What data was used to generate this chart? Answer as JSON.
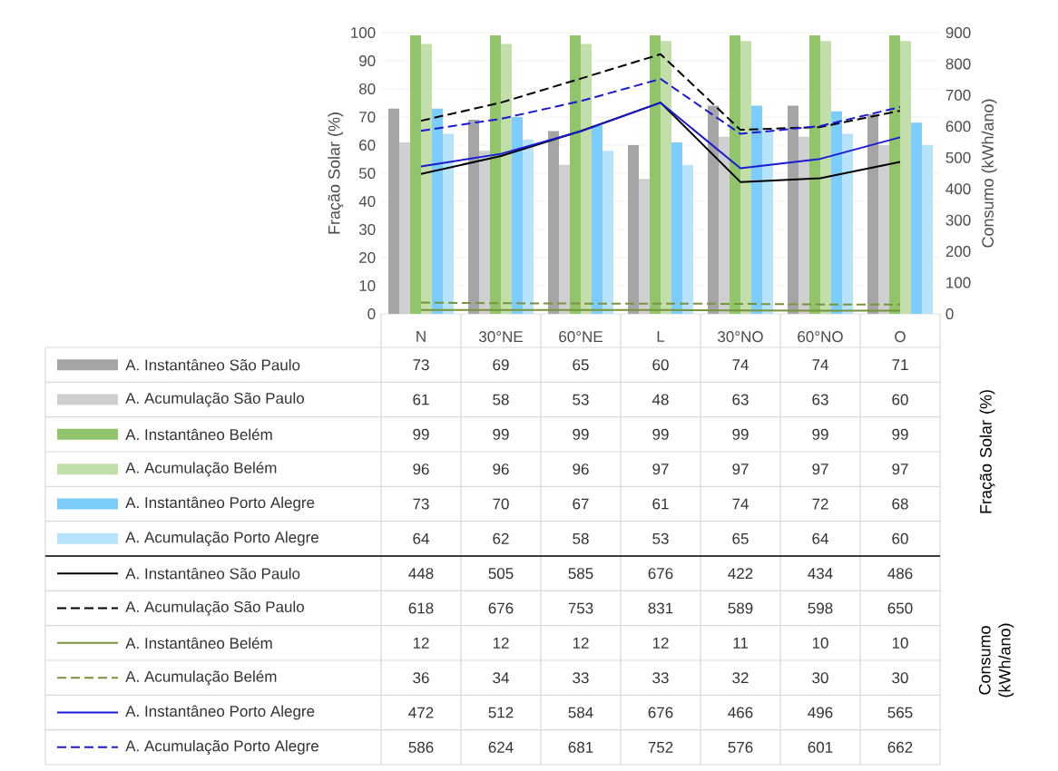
{
  "chart_data": {
    "type": "bar",
    "ylabel": "Fração Solar (%)",
    "y2label": "Consumo (kWh/ano)",
    "categories": [
      "N",
      "30°NE",
      "60°NE",
      "L",
      "30°NO",
      "60°NO",
      "O"
    ],
    "ylim": [
      0,
      100
    ],
    "yticks": [
      0,
      10,
      20,
      30,
      40,
      50,
      60,
      70,
      80,
      90,
      100
    ],
    "y2lim": [
      0,
      900
    ],
    "y2ticks": [
      0,
      100,
      200,
      300,
      400,
      500,
      600,
      700,
      800,
      900
    ],
    "grid": "y",
    "legend": "bottom",
    "data_labels": true,
    "series": [
      {
        "name": "A. Instantâneo São Paulo",
        "color": "#a5a5a5",
        "values": [
          73,
          69,
          65,
          60,
          74,
          74,
          71
        ]
      },
      {
        "name": "A. Acumulação São Paulo",
        "color": "#cfcfcf",
        "values": [
          61,
          58,
          53,
          48,
          63,
          63,
          60
        ]
      },
      {
        "name": "A. Instantâneo Belém",
        "color": "#92c46c",
        "values": [
          99,
          99,
          99,
          99,
          99,
          99,
          99
        ]
      },
      {
        "name": "A. Acumulação Belém",
        "color": "#c2dea9",
        "values": [
          96,
          96,
          96,
          97,
          97,
          97,
          97
        ]
      },
      {
        "name": "A. Instantâneo Porto Alegre",
        "color": "#7dcdfc",
        "values": [
          73,
          70,
          67,
          61,
          74,
          72,
          68
        ]
      },
      {
        "name": "A. Acumulação Porto Alegre",
        "color": "#b8e3fd",
        "values": [
          64,
          62,
          58,
          53,
          65,
          64,
          60
        ]
      },
      {
        "name": "A. Instantâneo São Paulo",
        "type": "line",
        "axis": "y2",
        "color": "#000000",
        "values": [
          448,
          505,
          585,
          676,
          422,
          434,
          486
        ]
      },
      {
        "name": "A. Acumulação São Paulo",
        "type": "line",
        "axis": "y2",
        "color": "#000000",
        "line_style": "dashed",
        "values": [
          618,
          676,
          753,
          831,
          589,
          598,
          650
        ]
      },
      {
        "name": "A. Instantâneo Belém",
        "type": "line",
        "axis": "y2",
        "color": "#77933c",
        "values": [
          12,
          12,
          12,
          12,
          11,
          10,
          10
        ]
      },
      {
        "name": "A. Acumulação Belém",
        "type": "line",
        "axis": "y2",
        "color": "#77933c",
        "line_style": "dashed",
        "values": [
          36,
          34,
          33,
          33,
          32,
          30,
          30
        ]
      },
      {
        "name": "A. Instantâneo Porto Alegre",
        "type": "line",
        "axis": "y2",
        "color": "#1a1ad6",
        "values": [
          472,
          512,
          584,
          676,
          466,
          496,
          565
        ]
      },
      {
        "name": "A. Acumulação Porto Alegre",
        "type": "line",
        "axis": "y2",
        "color": "#1a1ad6",
        "line_style": "dashed",
        "values": [
          586,
          624,
          681,
          752,
          576,
          601,
          662
        ]
      }
    ]
  }
}
